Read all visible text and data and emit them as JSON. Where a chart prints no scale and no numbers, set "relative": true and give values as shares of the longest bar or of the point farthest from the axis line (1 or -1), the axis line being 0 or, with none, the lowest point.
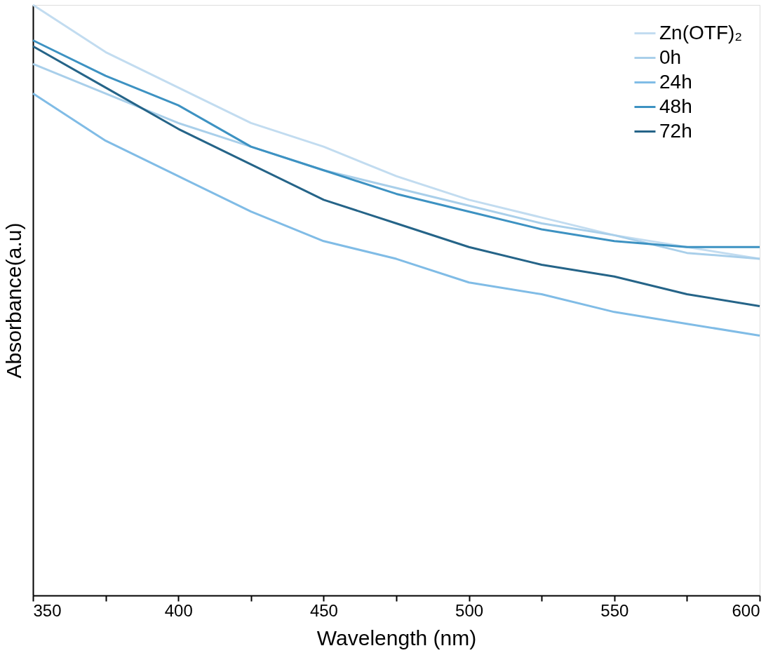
{
  "chart_data": {
    "type": "line",
    "xlabel": "Wavelength (nm)",
    "ylabel": "Absorbance(a.u)",
    "x": [
      350,
      375,
      400,
      425,
      450,
      475,
      500,
      525,
      550,
      575,
      600
    ],
    "relative": true,
    "series": [
      {
        "name": "Zn(OTF)₂",
        "color": "#c2dcf0",
        "values": [
          1.0,
          0.92,
          0.86,
          0.8,
          0.76,
          0.71,
          0.67,
          0.64,
          0.61,
          0.59,
          0.57
        ]
      },
      {
        "name": "0h",
        "color": "#a9cfea",
        "values": [
          0.9,
          0.85,
          0.8,
          0.76,
          0.72,
          0.69,
          0.66,
          0.63,
          0.61,
          0.58,
          0.57
        ]
      },
      {
        "name": "24h",
        "color": "#80bce6",
        "values": [
          0.85,
          0.77,
          0.71,
          0.65,
          0.6,
          0.57,
          0.53,
          0.51,
          0.48,
          0.46,
          0.44
        ]
      },
      {
        "name": "48h",
        "color": "#3d92c2",
        "values": [
          0.94,
          0.88,
          0.83,
          0.76,
          0.72,
          0.68,
          0.65,
          0.62,
          0.6,
          0.59,
          0.59
        ]
      },
      {
        "name": "72h",
        "color": "#256488",
        "values": [
          0.93,
          0.86,
          0.79,
          0.73,
          0.67,
          0.63,
          0.59,
          0.56,
          0.54,
          0.51,
          0.49
        ]
      }
    ],
    "xlim": [
      350,
      600
    ],
    "xticks": [
      350,
      {
        "value": 375,
        "label": null
      },
      400,
      {
        "value": 425,
        "label": null
      },
      450,
      {
        "value": 475,
        "label": null
      },
      500,
      {
        "value": 525,
        "label": null
      },
      550,
      {
        "value": 575,
        "label": null
      },
      600
    ],
    "grid": false,
    "legend": "top right",
    "tick_labels": "x",
    "marker": "none",
    "line_style": "solid"
  }
}
